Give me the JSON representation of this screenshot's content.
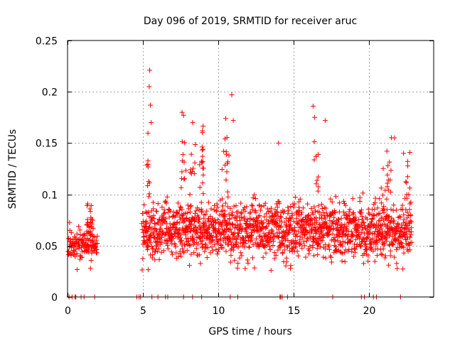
{
  "chart_data": {
    "type": "scatter",
    "title": "Day 096 of 2019, SRMTID for receiver aruc",
    "xlabel": "GPS time / hours",
    "ylabel": "SRMTID / TECUs",
    "xlim": [
      0,
      24.3
    ],
    "ylim": [
      0,
      0.25
    ],
    "grid": true,
    "marker": "+",
    "color": "#ff0000",
    "x_ticks": [
      0,
      5,
      10,
      15,
      20
    ],
    "x_tick_labels": [
      "0",
      "5",
      "10",
      "15",
      "20"
    ],
    "y_ticks": [
      0,
      0.05,
      0.1,
      0.15,
      0.2,
      0.25
    ],
    "y_tick_labels": [
      "0",
      "0.05",
      "0.1",
      "0.15",
      "0.2",
      "0.25"
    ],
    "zero_points_x": [
      0.1,
      0.3,
      0.5,
      0.55,
      0.9,
      1.1,
      1.8,
      4.6,
      4.75,
      4.85,
      5.6,
      6.0,
      6.5,
      6.65,
      7.7,
      8.3,
      8.9,
      10.8,
      11.3,
      14.1,
      14.15,
      14.25,
      14.6,
      17.6,
      19.5,
      19.7,
      20.3,
      20.5,
      22.1
    ],
    "segments": [
      {
        "start": 0.05,
        "end": 2.0,
        "n": 130,
        "base": 0.048,
        "spread": 0.02,
        "seed": 11
      },
      {
        "start": 4.95,
        "end": 22.85,
        "n": 1650,
        "base": 0.06,
        "spread": 0.032,
        "seed": 29
      }
    ],
    "clusters": [
      {
        "x": 1.5,
        "y": 0.072,
        "n": 25,
        "dx": 0.22,
        "dy": 0.012
      },
      {
        "x": 5.35,
        "y": 0.11,
        "n": 12,
        "dx": 0.1,
        "dy": 0.03
      },
      {
        "x": 7.7,
        "y": 0.12,
        "n": 12,
        "dx": 0.2,
        "dy": 0.03
      },
      {
        "x": 8.3,
        "y": 0.12,
        "n": 10,
        "dx": 0.2,
        "dy": 0.02
      },
      {
        "x": 8.9,
        "y": 0.13,
        "n": 16,
        "dx": 0.15,
        "dy": 0.02
      },
      {
        "x": 10.4,
        "y": 0.11,
        "n": 10,
        "dx": 0.3,
        "dy": 0.03
      },
      {
        "x": 10.6,
        "y": 0.13,
        "n": 8,
        "dx": 0.2,
        "dy": 0.03
      },
      {
        "x": 16.5,
        "y": 0.13,
        "n": 10,
        "dx": 0.25,
        "dy": 0.03
      },
      {
        "x": 21.0,
        "y": 0.11,
        "n": 10,
        "dx": 0.3,
        "dy": 0.025
      },
      {
        "x": 21.3,
        "y": 0.12,
        "n": 10,
        "dx": 0.2,
        "dy": 0.025
      },
      {
        "x": 22.6,
        "y": 0.11,
        "n": 10,
        "dx": 0.2,
        "dy": 0.02
      }
    ],
    "outliers": [
      {
        "x": 5.45,
        "y": 0.221
      },
      {
        "x": 5.42,
        "y": 0.205
      },
      {
        "x": 5.5,
        "y": 0.187
      },
      {
        "x": 5.55,
        "y": 0.17
      },
      {
        "x": 7.6,
        "y": 0.18
      },
      {
        "x": 7.7,
        "y": 0.177
      },
      {
        "x": 8.3,
        "y": 0.17
      },
      {
        "x": 8.95,
        "y": 0.162
      },
      {
        "x": 10.5,
        "y": 0.174
      },
      {
        "x": 10.9,
        "y": 0.197
      },
      {
        "x": 11.0,
        "y": 0.172
      },
      {
        "x": 16.3,
        "y": 0.186
      },
      {
        "x": 16.4,
        "y": 0.175
      },
      {
        "x": 17.1,
        "y": 0.172
      },
      {
        "x": 14.0,
        "y": 0.15
      },
      {
        "x": 21.7,
        "y": 0.155
      },
      {
        "x": 22.3,
        "y": 0.14
      }
    ]
  }
}
